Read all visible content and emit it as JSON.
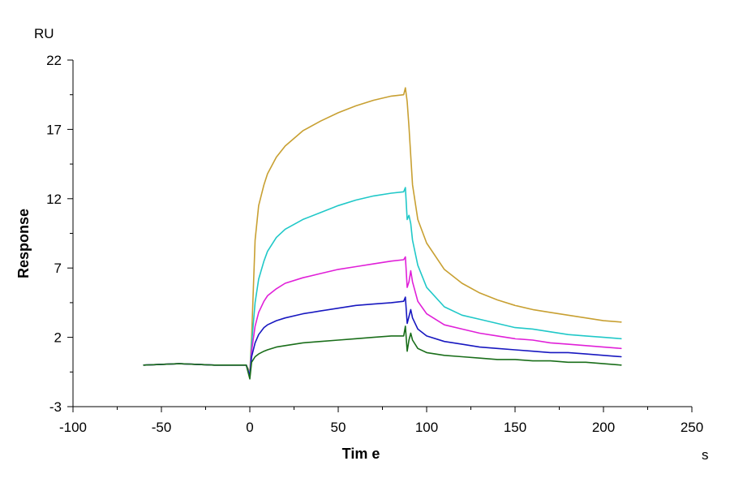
{
  "chart_data": {
    "type": "line",
    "xlabel": "Tim e",
    "ylabel": "Response",
    "xunit": "s",
    "yunit": "RU",
    "xlim": [
      -100,
      250
    ],
    "ylim": [
      -3,
      22
    ],
    "xticks": [
      -100,
      -50,
      0,
      50,
      100,
      150,
      200,
      250
    ],
    "yticks": [
      -3,
      2,
      7,
      12,
      17,
      22
    ],
    "grid": false,
    "legend": "none",
    "series": [
      {
        "color": "#C8A032",
        "x": [
          -60,
          -40,
          -20,
          -2,
          0,
          1,
          3,
          5,
          8,
          10,
          15,
          20,
          30,
          40,
          50,
          60,
          70,
          80,
          87,
          88,
          89,
          90,
          92,
          95,
          100,
          110,
          120,
          130,
          140,
          150,
          160,
          170,
          180,
          190,
          200,
          210
        ],
        "y": [
          0.0,
          0.1,
          0.0,
          0.0,
          -0.5,
          2.0,
          9.0,
          11.5,
          13.0,
          13.8,
          15.0,
          15.8,
          16.9,
          17.6,
          18.2,
          18.7,
          19.1,
          19.4,
          19.5,
          20.0,
          19.0,
          17.2,
          13.0,
          10.5,
          8.8,
          6.9,
          5.9,
          5.2,
          4.7,
          4.3,
          4.0,
          3.8,
          3.6,
          3.4,
          3.2,
          3.1
        ]
      },
      {
        "color": "#20C8C8",
        "x": [
          -60,
          -40,
          -20,
          -2,
          0,
          1,
          3,
          5,
          8,
          10,
          15,
          20,
          30,
          40,
          50,
          60,
          70,
          80,
          87,
          88,
          89,
          90,
          91,
          92,
          95,
          100,
          110,
          120,
          130,
          140,
          150,
          160,
          170,
          180,
          190,
          200,
          210
        ],
        "y": [
          0.0,
          0.1,
          0.0,
          0.0,
          -0.7,
          1.5,
          4.5,
          6.2,
          7.5,
          8.2,
          9.2,
          9.8,
          10.5,
          11.0,
          11.5,
          11.9,
          12.2,
          12.4,
          12.5,
          12.8,
          10.5,
          10.8,
          10.2,
          9.0,
          7.2,
          5.6,
          4.2,
          3.6,
          3.3,
          3.0,
          2.7,
          2.6,
          2.4,
          2.2,
          2.1,
          2.0,
          1.9
        ]
      },
      {
        "color": "#E020D8",
        "x": [
          -60,
          -40,
          -20,
          -2,
          0,
          1,
          3,
          5,
          8,
          10,
          15,
          20,
          30,
          40,
          50,
          60,
          70,
          80,
          87,
          88,
          89,
          90,
          91,
          92,
          95,
          100,
          110,
          120,
          130,
          140,
          150,
          160,
          170,
          180,
          190,
          200,
          210
        ],
        "y": [
          0.0,
          0.1,
          0.0,
          0.0,
          -0.8,
          1.0,
          2.8,
          3.8,
          4.6,
          5.0,
          5.5,
          5.9,
          6.3,
          6.6,
          6.9,
          7.1,
          7.3,
          7.5,
          7.6,
          7.8,
          5.6,
          6.0,
          6.8,
          6.0,
          4.6,
          3.7,
          2.9,
          2.6,
          2.3,
          2.1,
          1.9,
          1.8,
          1.6,
          1.5,
          1.4,
          1.3,
          1.2
        ]
      },
      {
        "color": "#1818C0",
        "x": [
          -60,
          -40,
          -20,
          -2,
          0,
          1,
          3,
          5,
          8,
          10,
          15,
          20,
          30,
          40,
          50,
          60,
          70,
          80,
          87,
          88,
          89,
          90,
          91,
          92,
          95,
          100,
          110,
          120,
          130,
          140,
          150,
          160,
          170,
          180,
          190,
          200,
          210
        ],
        "y": [
          0.0,
          0.1,
          0.0,
          0.0,
          -0.8,
          0.6,
          1.6,
          2.2,
          2.7,
          2.9,
          3.2,
          3.4,
          3.7,
          3.9,
          4.1,
          4.3,
          4.4,
          4.5,
          4.6,
          4.9,
          3.0,
          3.5,
          4.0,
          3.4,
          2.6,
          2.1,
          1.7,
          1.5,
          1.3,
          1.2,
          1.1,
          1.0,
          0.9,
          0.9,
          0.8,
          0.7,
          0.6
        ]
      },
      {
        "color": "#1A6E1A",
        "x": [
          -60,
          -40,
          -20,
          -2,
          0,
          1,
          3,
          5,
          8,
          10,
          15,
          20,
          30,
          40,
          50,
          60,
          70,
          80,
          87,
          88,
          89,
          90,
          91,
          92,
          95,
          100,
          110,
          120,
          130,
          140,
          150,
          160,
          170,
          180,
          190,
          200,
          210
        ],
        "y": [
          0.0,
          0.1,
          0.0,
          0.0,
          -1.0,
          0.2,
          0.6,
          0.8,
          1.0,
          1.1,
          1.3,
          1.4,
          1.6,
          1.7,
          1.8,
          1.9,
          2.0,
          2.1,
          2.1,
          2.8,
          1.0,
          1.8,
          2.3,
          1.8,
          1.2,
          0.9,
          0.7,
          0.6,
          0.5,
          0.4,
          0.4,
          0.3,
          0.3,
          0.2,
          0.2,
          0.1,
          0.0
        ]
      }
    ]
  }
}
